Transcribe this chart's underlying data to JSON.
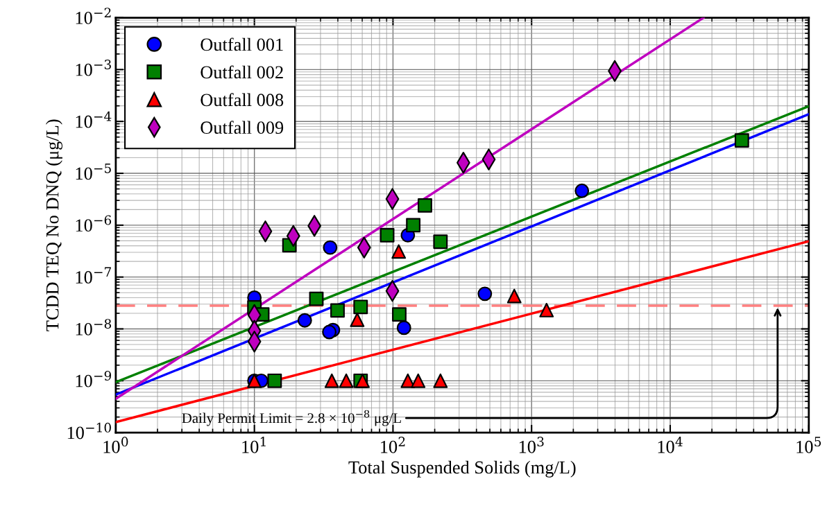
{
  "chart_data": {
    "type": "scatter",
    "xlabel": "Total Suspended Solids (mg/L)",
    "ylabel": "TCDD TEQ No DNQ (μg/L)",
    "log": "xy",
    "grid": true,
    "legend": "top left",
    "xlim": [
      1,
      100000
    ],
    "ylim": [
      1e-10,
      0.01
    ],
    "xticks": [
      {
        "value": 1,
        "label": "10$^{0}$"
      },
      {
        "value": 10,
        "label": "10$^{1}$"
      },
      {
        "value": 100,
        "label": "10$^{2}$"
      },
      {
        "value": 1000,
        "label": "10$^{3}$"
      },
      {
        "value": 10000,
        "label": "10$^{4}$"
      },
      {
        "value": 100000,
        "label": "10$^{5}$"
      }
    ],
    "yticks": [
      {
        "value": 1e-10,
        "label": "10$^{−10}$"
      },
      {
        "value": 1e-09,
        "label": "10$^{−9}$"
      },
      {
        "value": 1e-08,
        "label": "10$^{−8}$"
      },
      {
        "value": 1e-07,
        "label": "10$^{−7}$"
      },
      {
        "value": 1e-06,
        "label": "10$^{−6}$"
      },
      {
        "value": 1e-05,
        "label": "10$^{−5}$"
      },
      {
        "value": 0.0001,
        "label": "10$^{−4}$"
      },
      {
        "value": 0.001,
        "label": "10$^{−3}$"
      },
      {
        "value": 0.01,
        "label": "10$^{−2}$"
      }
    ],
    "series": [
      {
        "name": "Outfall 001",
        "color": "#0000ff",
        "marker": "circle",
        "x": [
          10,
          35.2,
          23.1,
          36.9,
          34.7,
          128,
          120,
          10,
          11.2,
          2307,
          460
        ],
        "values": [
          4e-08,
          3.7e-07,
          1.46e-08,
          9.5e-09,
          8.7e-09,
          6.4e-07,
          1.05e-08,
          1e-09,
          1e-09,
          4.6e-06,
          4.75e-08
        ]
      },
      {
        "name": "Outfall 002",
        "color": "#008000",
        "marker": "square",
        "x": [
          17.9,
          28,
          39.8,
          58.4,
          90.8,
          140,
          170,
          220,
          111,
          14,
          58.4,
          10,
          11.4,
          32900
        ],
        "values": [
          4.1e-07,
          3.8e-08,
          2.27e-08,
          2.65e-08,
          6.4e-07,
          1e-06,
          2.4e-06,
          4.8e-07,
          1.9e-08,
          1e-09,
          1e-09,
          2.6e-08,
          1.9e-08,
          4.3e-05
        ]
      },
      {
        "name": "Outfall 008",
        "color": "#ff0000",
        "marker": "triangle",
        "x": [
          110,
          55.2,
          10,
          36.2,
          46,
          60.3,
          128,
          152,
          220,
          750,
          1282
        ],
        "values": [
          3.1e-07,
          1.5e-08,
          1e-09,
          1e-09,
          1e-09,
          1e-09,
          1e-09,
          1e-09,
          1e-09,
          4.3e-08,
          2.3e-08
        ]
      },
      {
        "name": "Outfall 009",
        "color": "#bf00bf",
        "marker": "diamond",
        "x": [
          12,
          19.1,
          27.1,
          61.9,
          99,
          99,
          10,
          10,
          10,
          322,
          491,
          3981
        ],
        "values": [
          7.6e-07,
          6.2e-07,
          9.7e-07,
          3.7e-07,
          3.2e-06,
          5.4e-08,
          1.85e-08,
          9.2e-09,
          5.7e-09,
          1.6e-05,
          1.85e-05,
          0.00094
        ]
      },
      {
        "type": "line",
        "color": "#0000ff",
        "x": [
          1,
          100000
        ],
        "values": [
          5.4e-10,
          0.000138
        ]
      },
      {
        "type": "line",
        "color": "#008000",
        "x": [
          1,
          100000
        ],
        "values": [
          9.4e-10,
          0.000196
        ]
      },
      {
        "type": "line",
        "color": "#ff0000",
        "x": [
          1,
          100000
        ],
        "values": [
          1.6e-10,
          4.9e-07
        ]
      },
      {
        "type": "line",
        "color": "#bf00bf",
        "x": [
          1,
          17400
        ],
        "values": [
          4.5e-10,
          0.01
        ]
      }
    ],
    "ref_lines": [
      {
        "axis": "y",
        "value": 2.8e-08,
        "color": "#ff8080",
        "line_style": "dashed"
      }
    ],
    "annotations": [
      "Daily Permit Limit = 2.8 × 10$^{−8}$ μg/L"
    ]
  }
}
